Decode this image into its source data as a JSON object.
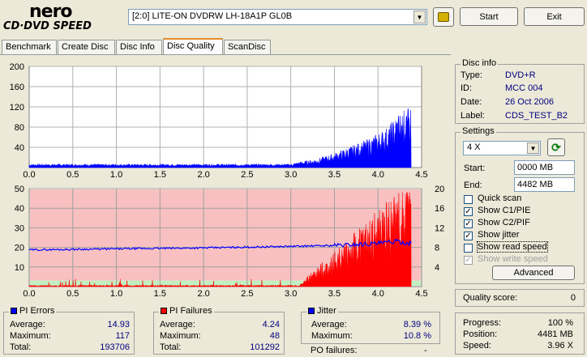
{
  "logo": {
    "line1": "nero",
    "line2": "CD·DVD SPEED"
  },
  "drive": {
    "selected": "[2:0]  LITE-ON DVDRW LH-18A1P GL0B"
  },
  "buttons": {
    "start": "Start",
    "exit": "Exit",
    "advanced": "Advanced"
  },
  "tabs": [
    {
      "label": "Benchmark"
    },
    {
      "label": "Create Disc"
    },
    {
      "label": "Disc Info"
    },
    {
      "label": "Disc Quality"
    },
    {
      "label": "ScanDisc"
    }
  ],
  "disc_info": {
    "title": "Disc info",
    "rows": [
      {
        "label": "Type:",
        "value": "DVD+R"
      },
      {
        "label": "ID:",
        "value": "MCC 004"
      },
      {
        "label": "Date:",
        "value": "26 Oct 2006"
      },
      {
        "label": "Label:",
        "value": "CDS_TEST_B2"
      }
    ]
  },
  "settings": {
    "title": "Settings",
    "speed": "4 X",
    "start_label": "Start:",
    "start_value": "0000 MB",
    "end_label": "End:",
    "end_value": "4482 MB",
    "checks": [
      {
        "label": "Quick scan",
        "checked": false,
        "disabled": false
      },
      {
        "label": "Show C1/PIE",
        "checked": true,
        "disabled": false
      },
      {
        "label": "Show C2/PIF",
        "checked": true,
        "disabled": false
      },
      {
        "label": "Show jitter",
        "checked": true,
        "disabled": false
      },
      {
        "label": "Show read speed",
        "checked": false,
        "disabled": false
      },
      {
        "label": "Show write speed",
        "checked": true,
        "disabled": true
      }
    ]
  },
  "quality": {
    "label": "Quality score:",
    "value": "0"
  },
  "progress": {
    "rows": [
      {
        "label": "Progress:",
        "value": "100 %"
      },
      {
        "label": "Position:",
        "value": "4481 MB"
      },
      {
        "label": "Speed:",
        "value": "3.96 X"
      }
    ]
  },
  "pi_errors": {
    "title": "PI Errors",
    "color": "#0000ff",
    "rows": [
      {
        "label": "Average:",
        "value": "14.93"
      },
      {
        "label": "Maximum:",
        "value": "117"
      },
      {
        "label": "Total:",
        "value": "193706"
      }
    ]
  },
  "pi_failures": {
    "title": "PI Failures",
    "color": "#ff0000",
    "rows": [
      {
        "label": "Average:",
        "value": "4.24"
      },
      {
        "label": "Maximum:",
        "value": "48"
      },
      {
        "label": "Total:",
        "value": "101292"
      }
    ]
  },
  "jitter": {
    "title": "Jitter",
    "color": "#0000ff",
    "rows": [
      {
        "label": "Average:",
        "value": "8.39 %"
      },
      {
        "label": "Maximum:",
        "value": "10.8 %"
      }
    ],
    "po_label": "PO failures:",
    "po_value": "-"
  },
  "chart_data": [
    {
      "type": "bar",
      "series": [
        {
          "name": "PI Errors",
          "color": "#0000ff"
        }
      ],
      "x_ticks": [
        "0.0",
        "0.5",
        "1.0",
        "1.5",
        "2.0",
        "2.5",
        "3.0",
        "3.5",
        "4.0",
        "4.5"
      ],
      "y_ticks": [
        "200",
        "160",
        "120",
        "80",
        "40"
      ],
      "xlim": [
        0,
        4.5
      ],
      "ylim": [
        0,
        200
      ],
      "profile": [
        [
          0,
          5
        ],
        [
          3.0,
          5
        ],
        [
          3.1,
          8
        ],
        [
          3.3,
          12
        ],
        [
          3.5,
          20
        ],
        [
          3.7,
          30
        ],
        [
          3.9,
          40
        ],
        [
          4.1,
          55
        ],
        [
          4.25,
          75
        ],
        [
          4.38,
          85
        ]
      ],
      "max_value": 117,
      "grid": true
    },
    {
      "type": "bar",
      "series": [
        {
          "name": "PI Failures",
          "color": "#ff0000"
        },
        {
          "name": "Jitter",
          "color": "#0000ff",
          "axis": "right"
        }
      ],
      "x_ticks": [
        "0.0",
        "0.5",
        "1.0",
        "1.5",
        "2.0",
        "2.5",
        "3.0",
        "3.5",
        "4.0",
        "4.5"
      ],
      "y_ticks_left": [
        "50",
        "40",
        "30",
        "20",
        "10"
      ],
      "y_ticks_right": [
        "20",
        "16",
        "12",
        "8",
        "4"
      ],
      "xlim": [
        0,
        4.5
      ],
      "ylim_left": [
        0,
        50
      ],
      "ylim_right": [
        0,
        20
      ],
      "pif_profile": [
        [
          0,
          0.5
        ],
        [
          3.1,
          0.5
        ],
        [
          3.2,
          4
        ],
        [
          3.4,
          10
        ],
        [
          3.6,
          16
        ],
        [
          3.8,
          22
        ],
        [
          4.0,
          28
        ],
        [
          4.2,
          34
        ],
        [
          4.38,
          40
        ]
      ],
      "pif_max": 48,
      "jitter_profile": [
        [
          0,
          7.5
        ],
        [
          1.0,
          7.7
        ],
        [
          2.0,
          7.9
        ],
        [
          3.0,
          8.2
        ],
        [
          3.5,
          8.4
        ],
        [
          4.0,
          8.8
        ],
        [
          4.2,
          9.2
        ],
        [
          4.38,
          8.8
        ]
      ],
      "background": {
        "bad": "#f8c0c0",
        "good": "#c0f0c0"
      },
      "grid": true
    }
  ]
}
